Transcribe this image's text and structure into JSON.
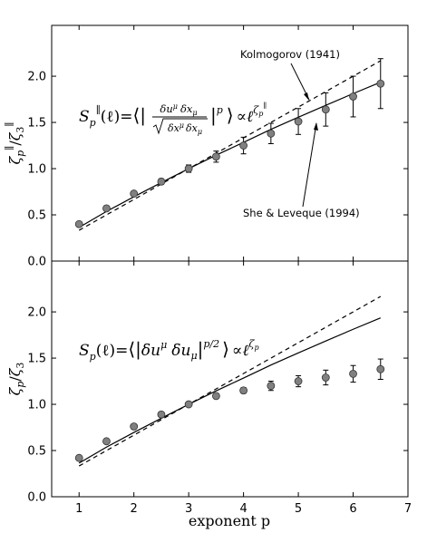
{
  "chart_data": [
    {
      "type": "scatter",
      "panel": "top",
      "ylabel": "ζp∥/ζ3∥",
      "xlim": [
        0.5,
        7
      ],
      "ylim": [
        0.0,
        2.55
      ],
      "yticks": [
        "0.0",
        "0.5",
        "1.0",
        "1.5",
        "2.0"
      ],
      "series": [
        {
          "name": "data",
          "x": [
            1,
            1.5,
            2,
            2.5,
            3,
            3.5,
            4,
            4.5,
            5,
            5.5,
            6,
            6.5
          ],
          "y": [
            0.4,
            0.57,
            0.73,
            0.86,
            1.0,
            1.13,
            1.25,
            1.38,
            1.51,
            1.64,
            1.78,
            1.92
          ],
          "err": [
            0.0,
            0.0,
            0.0,
            0.03,
            0.04,
            0.06,
            0.09,
            0.11,
            0.14,
            0.18,
            0.22,
            0.27
          ]
        },
        {
          "name": "Kolmogorov (1941)",
          "style": "dashed",
          "x": [
            1,
            6.5
          ],
          "y": [
            0.333,
            2.167
          ]
        },
        {
          "name": "She & Leveque (1994)",
          "style": "solid",
          "x": [
            1,
            1.5,
            2,
            2.5,
            3,
            3.5,
            4,
            4.5,
            5,
            5.5,
            6,
            6.5
          ],
          "y": [
            0.364,
            0.537,
            0.696,
            0.849,
            1.0,
            1.146,
            1.284,
            1.425,
            1.556,
            1.685,
            1.812,
            1.935
          ]
        }
      ],
      "annotations": [
        {
          "text": "Kolmogorov (1941)",
          "arrow_to": [
            5.25,
            1.96
          ]
        },
        {
          "text": "She & Leveque (1994)",
          "arrow_to": [
            5.45,
            1.7
          ]
        }
      ],
      "formula": {
        "lhs": "S",
        "lhs_sub": "p",
        "lhs_sup": "∥",
        "arg": "(ℓ)",
        "eq": "=",
        "frac_num": "δu",
        "frac_num_sup": "μ",
        "frac_num2": "δx",
        "frac_num2_sub": "μ",
        "frac_den": "δx",
        "frac_den_sup": "μ",
        "frac_den2": "δx",
        "frac_den2_sub": "μ",
        "power": "p",
        "prop": "∝",
        "rhs": "ℓ",
        "rhs_sup": "ζ",
        "rhs_sup_sub": "p",
        "rhs_sup_sup": "∥"
      }
    },
    {
      "type": "scatter",
      "panel": "bottom",
      "xlabel": "exponent p",
      "ylabel": "ζp/ζ3",
      "xlim": [
        0.5,
        7
      ],
      "ylim": [
        0.0,
        2.55
      ],
      "xticks": [
        "1",
        "2",
        "3",
        "4",
        "5",
        "6",
        "7"
      ],
      "yticks": [
        "0.0",
        "0.5",
        "1.0",
        "1.5",
        "2.0"
      ],
      "series": [
        {
          "name": "data",
          "x": [
            1,
            1.5,
            2,
            2.5,
            3,
            3.5,
            4,
            4.5,
            5,
            5.5,
            6,
            6.5
          ],
          "y": [
            0.42,
            0.6,
            0.76,
            0.89,
            1.0,
            1.09,
            1.15,
            1.2,
            1.25,
            1.29,
            1.33,
            1.38
          ],
          "err": [
            0.0,
            0.0,
            0.0,
            0.0,
            0.01,
            0.02,
            0.03,
            0.05,
            0.06,
            0.08,
            0.09,
            0.11
          ]
        },
        {
          "name": "Kolmogorov (1941)",
          "style": "dashed",
          "x": [
            1,
            6.5
          ],
          "y": [
            0.333,
            2.167
          ]
        },
        {
          "name": "She & Leveque (1994)",
          "style": "solid",
          "x": [
            1,
            1.5,
            2,
            2.5,
            3,
            3.5,
            4,
            4.5,
            5,
            5.5,
            6,
            6.5
          ],
          "y": [
            0.364,
            0.537,
            0.696,
            0.849,
            1.0,
            1.146,
            1.284,
            1.425,
            1.556,
            1.685,
            1.812,
            1.935
          ]
        }
      ],
      "formula": {
        "lhs": "S",
        "lhs_sub": "p",
        "arg": "(ℓ)",
        "eq": "=",
        "body": "δu",
        "body_sup": "μ",
        "body2": "δu",
        "body2_sub": "μ",
        "power": "p/2",
        "prop": "∝",
        "rhs": "ℓ",
        "rhs_sup": "ζ",
        "rhs_sup_sub": "p"
      }
    }
  ]
}
